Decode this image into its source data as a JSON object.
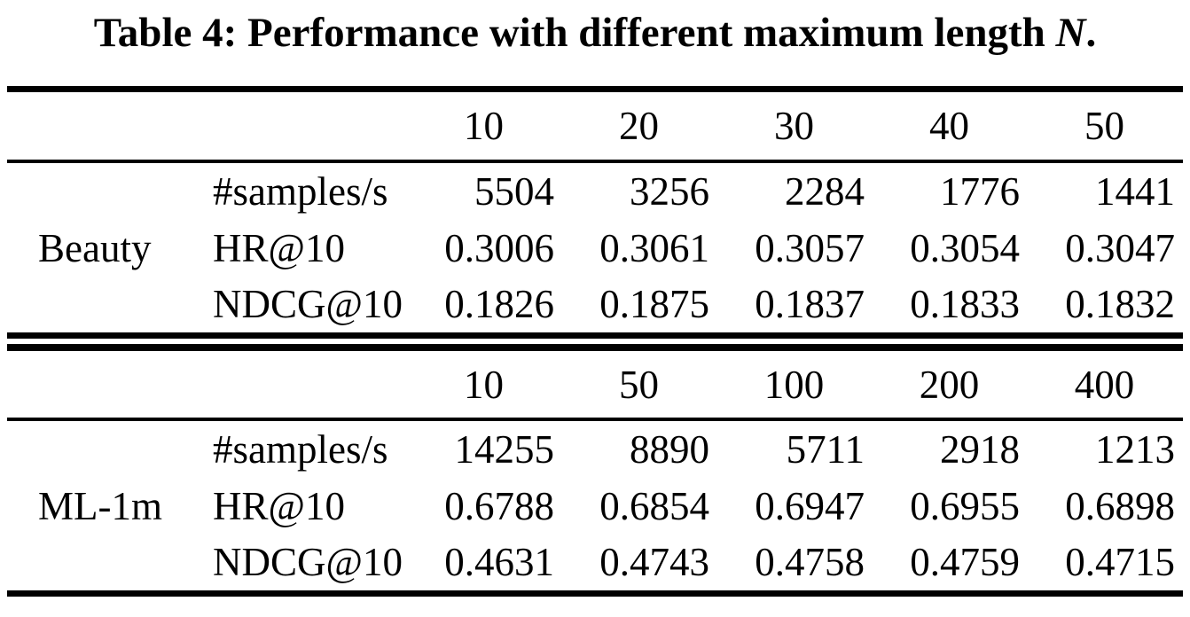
{
  "title": {
    "prefix": "Table 4: Performance with different maximum length ",
    "math_var": "N",
    "suffix": "."
  },
  "colors": {
    "text": "#000000",
    "background": "#ffffff",
    "rule": "#000000"
  },
  "chart_data": {
    "type": "table",
    "title": "Table 4: Performance with different maximum length N.",
    "sections": [
      {
        "dataset": "Beauty",
        "columns": [
          "10",
          "20",
          "30",
          "40",
          "50"
        ],
        "rows": [
          {
            "metric": "#samples/s",
            "values": [
              "5504",
              "3256",
              "2284",
              "1776",
              "1441"
            ]
          },
          {
            "metric": "HR@10",
            "values": [
              "0.3006",
              "0.3061",
              "0.3057",
              "0.3054",
              "0.3047"
            ]
          },
          {
            "metric": "NDCG@10",
            "values": [
              "0.1826",
              "0.1875",
              "0.1837",
              "0.1833",
              "0.1832"
            ]
          }
        ]
      },
      {
        "dataset": "ML-1m",
        "columns": [
          "10",
          "50",
          "100",
          "200",
          "400"
        ],
        "rows": [
          {
            "metric": "#samples/s",
            "values": [
              "14255",
              "8890",
              "5711",
              "2918",
              "1213"
            ]
          },
          {
            "metric": "HR@10",
            "values": [
              "0.6788",
              "0.6854",
              "0.6947",
              "0.6955",
              "0.6898"
            ]
          },
          {
            "metric": "NDCG@10",
            "values": [
              "0.4631",
              "0.4743",
              "0.4758",
              "0.4759",
              "0.4715"
            ]
          }
        ]
      }
    ]
  }
}
